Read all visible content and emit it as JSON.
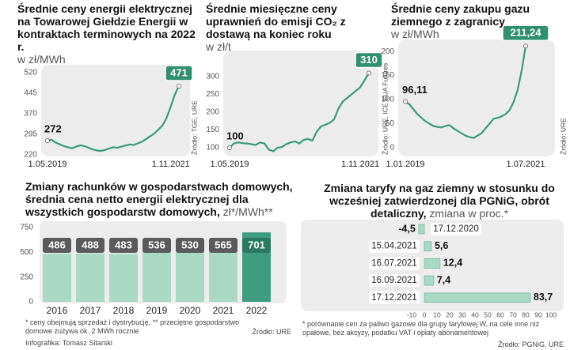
{
  "chart_data": [
    {
      "type": "line",
      "title": "Średnie ceny energii elektrycznej na Towarowej Giełdzie Energii w kontraktach terminowych na 2022 r.",
      "unit": "w zł/MWh",
      "source": "Źródło: TGE, URE",
      "color": "#3b9a78",
      "categories": [
        "1.05.2019",
        null,
        null,
        null,
        null,
        null,
        null,
        null,
        null,
        null,
        null,
        null,
        null,
        null,
        null,
        null,
        null,
        null,
        null,
        null,
        null,
        null,
        null,
        null,
        null,
        null,
        null,
        null,
        null,
        null,
        "1.11.2021",
        null,
        null
      ],
      "values": [
        272,
        275,
        265,
        258,
        252,
        248,
        244,
        250,
        255,
        252,
        246,
        240,
        236,
        234,
        238,
        243,
        248,
        246,
        250,
        254,
        258,
        256,
        262,
        268,
        278,
        288,
        298,
        312,
        328,
        355,
        395,
        440,
        471
      ],
      "ylim": [
        220,
        520
      ],
      "yticks": [
        220,
        295,
        370,
        445,
        520
      ]
    },
    {
      "type": "line",
      "title": "Średnie miesięczne ceny uprawnień do emisji CO₂ z dostawą na koniec roku",
      "unit": "w zł/t",
      "source": "Źródło: URE, ICE EUA Futures",
      "color": "#3b9a78",
      "categories": [
        "1.05.2019",
        null,
        null,
        null,
        null,
        null,
        null,
        null,
        null,
        null,
        null,
        null,
        null,
        null,
        null,
        null,
        null,
        null,
        null,
        null,
        null,
        null,
        null,
        null,
        null,
        null,
        null,
        null,
        null,
        null,
        "1.11.2021",
        null,
        null
      ],
      "values": [
        100,
        112,
        115,
        113,
        112,
        110,
        108,
        115,
        112,
        95,
        90,
        100,
        102,
        110,
        115,
        118,
        112,
        122,
        125,
        120,
        145,
        160,
        165,
        170,
        180,
        210,
        230,
        240,
        250,
        260,
        270,
        290,
        310
      ],
      "ylim": [
        80,
        360
      ],
      "yticks": [
        100,
        150,
        200,
        250,
        300
      ]
    },
    {
      "type": "line",
      "title": "Średnie ceny zakupu gazu ziemnego z zagranicy",
      "unit": "w zł/MWh",
      "source": "Źródło: URE",
      "color": "#3b9a78",
      "categories": [
        "1.01.2019",
        null,
        null,
        null,
        null,
        null,
        null,
        null,
        null,
        null,
        null,
        null,
        null,
        null,
        null,
        null,
        null,
        null,
        null,
        null,
        null,
        null,
        null,
        null,
        null,
        null,
        null,
        null,
        null,
        null,
        "1.07.2021"
      ],
      "values": [
        96.11,
        90,
        80,
        70,
        62,
        55,
        50,
        45,
        43,
        42,
        45,
        47,
        40,
        35,
        30,
        25,
        22,
        20,
        25,
        30,
        40,
        50,
        60,
        62,
        65,
        70,
        78,
        95,
        120,
        160,
        211.24
      ],
      "value_labels": [
        "96,11",
        null,
        null,
        null,
        null,
        null,
        null,
        null,
        null,
        null,
        null,
        null,
        null,
        null,
        null,
        null,
        null,
        null,
        null,
        null,
        null,
        null,
        null,
        null,
        null,
        null,
        null,
        null,
        null,
        null,
        "211,24"
      ],
      "ylim": [
        -15,
        215
      ],
      "yticks": [
        0,
        50,
        100,
        150,
        200
      ]
    },
    {
      "type": "bar",
      "title": "Zmiany rachunków w gospodarstwach domowych, średnia cena netto energii elektrycznej dla wszystkich gospodarstw domowych,",
      "unit": "zł*/MWh**",
      "categories": [
        "2016",
        "2017",
        "2018",
        "2019",
        "2020",
        "2021",
        "2022"
      ],
      "values": [
        486,
        488,
        483,
        536,
        530,
        565,
        701
      ],
      "colors": [
        "#a9d8c4",
        "#a9d8c4",
        "#a9d8c4",
        "#a9d8c4",
        "#a9d8c4",
        "#a9d8c4",
        "#3e9c7f"
      ],
      "ylim": [
        0,
        750
      ],
      "yticks": [
        0,
        250,
        500,
        750
      ],
      "footnote": "* ceny obejmują sprzedaż i dystrybucję, ** przeciętne gospodarstwo domowe zużywa ok. 2 MWh rocznie",
      "source": "Źródło: URE"
    },
    {
      "type": "bar",
      "orientation": "horizontal",
      "title": "Zmiana taryfy na gaz ziemny w stosunku do wcześniej zatwierdzonej dla PGNiG, obrót detaliczny,",
      "unit": "zmiana w proc.*",
      "categories": [
        "17.12.2020",
        "15.04.2021",
        "16.07.2021",
        "16.09.2021",
        "17.12.2021"
      ],
      "values": [
        -4.5,
        5.6,
        12.4,
        7.4,
        83.7
      ],
      "value_labels": [
        "-4,5",
        "5,6",
        "12,4",
        "7,4",
        "83,7"
      ],
      "color": "#a9d8c4",
      "xlim": [
        -10,
        100
      ],
      "xticks": [
        -10,
        0,
        10,
        20,
        30,
        40,
        50,
        60,
        70,
        80,
        90,
        100
      ],
      "footnote": "* porównanie cen za paliwo gazowe dla grupy taryfowej W, na cele inne niż opałowe, bez akcyzy, podatku VAT i opłaty abonamentowej",
      "source": "Źródło: PGNiG, URE"
    }
  ],
  "credit": "Infografika: Tomasz Sitarski"
}
